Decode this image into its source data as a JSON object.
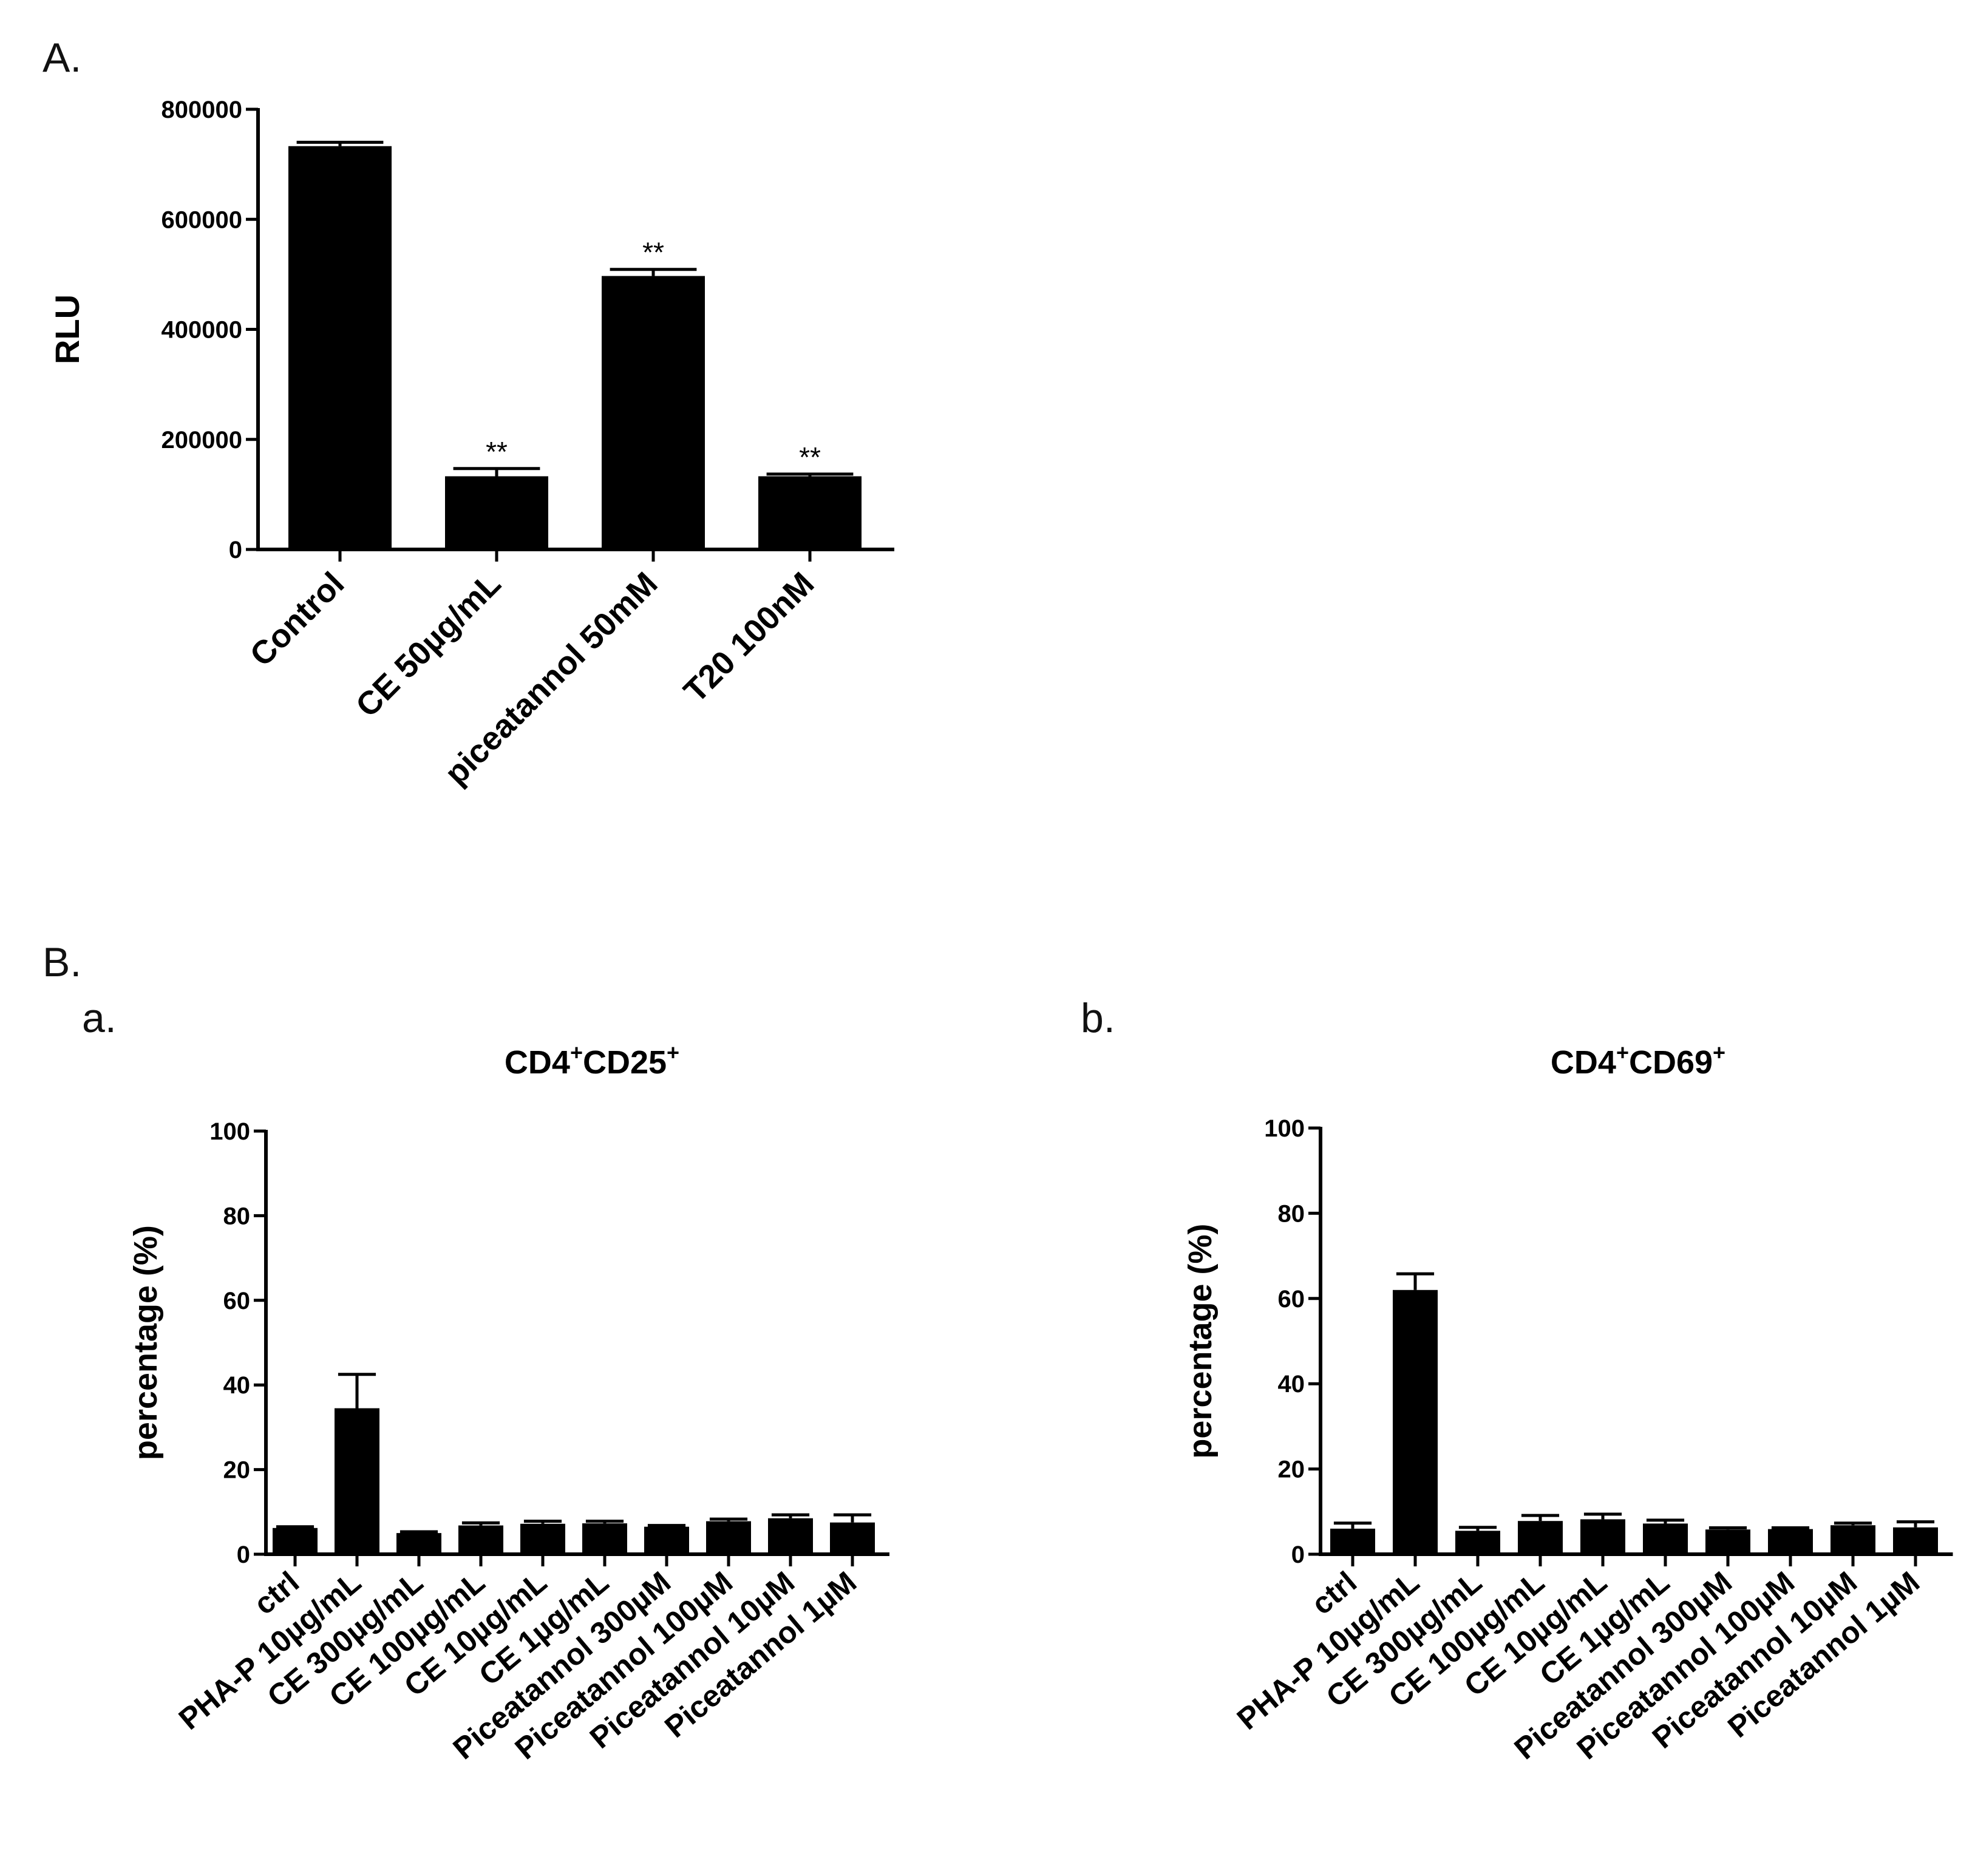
{
  "panels": {
    "A": "A.",
    "B": "B.",
    "Ba": "a.",
    "Bb": "b."
  },
  "chart_data": [
    {
      "id": "A",
      "type": "bar",
      "title": "",
      "xlabel": "",
      "ylabel": "RLU",
      "ylim": [
        0,
        800000
      ],
      "yticks": [
        "0",
        "200000",
        "400000",
        "600000",
        "800000"
      ],
      "categories": [
        "Control",
        "CE 50µg/mL",
        "piceatannol 50mM",
        "T20 100nM"
      ],
      "values": [
        733000,
        133000,
        497000,
        133000
      ],
      "errors": [
        7000,
        14000,
        12000,
        4000
      ],
      "annotations": [
        "",
        "**",
        "**",
        "**"
      ],
      "colors": {
        "bar": "#000000"
      }
    },
    {
      "id": "Ba",
      "type": "bar",
      "title": {
        "main": "CD4",
        "sup1": "+",
        "mid": "CD25",
        "sup2": "+"
      },
      "xlabel": "",
      "ylabel": "percentage (%)",
      "ylim": [
        0,
        100
      ],
      "yticks": [
        "0",
        "20",
        "40",
        "60",
        "80",
        "100"
      ],
      "categories": [
        "ctrl",
        "PHA-P 10µg/mL",
        "CE 300µg/mL",
        "CE 100µg/mL",
        "CE 10µg/mL",
        "CE 1µg/mL",
        "Piceatannol 300µM",
        "Piceatannol 100µM",
        "Piceatannol 10µM",
        "Piceatannol 1µM"
      ],
      "values": [
        6.2,
        34.5,
        5.0,
        6.8,
        7.2,
        7.3,
        6.5,
        7.8,
        8.5,
        7.5
      ],
      "errors": [
        0.3,
        8.0,
        0.3,
        0.6,
        0.6,
        0.5,
        0.3,
        0.5,
        0.8,
        1.8
      ]
    },
    {
      "id": "Bb",
      "type": "bar",
      "title": {
        "main": "CD4",
        "sup1": "+",
        "mid": "CD69",
        "sup2": "+"
      },
      "xlabel": "",
      "ylabel": "percentage (%)",
      "ylim": [
        0,
        100
      ],
      "yticks": [
        "0",
        "20",
        "40",
        "60",
        "80",
        "100"
      ],
      "categories": [
        "ctrl",
        "PHA-P 10µg/mL",
        "CE 300µg/mL",
        "CE 100µg/mL",
        "CE 10µg/mL",
        "CE 1µg/mL",
        "Piceatannol 300µM",
        "Piceatannol 100µM",
        "Piceatannol 10µM",
        "Piceatannol 1µM"
      ],
      "values": [
        6.0,
        62.0,
        5.5,
        7.8,
        8.2,
        7.2,
        5.8,
        5.9,
        6.8,
        6.3
      ],
      "errors": [
        1.3,
        3.8,
        0.8,
        1.3,
        1.2,
        0.8,
        0.4,
        0.3,
        0.5,
        1.3
      ]
    }
  ]
}
